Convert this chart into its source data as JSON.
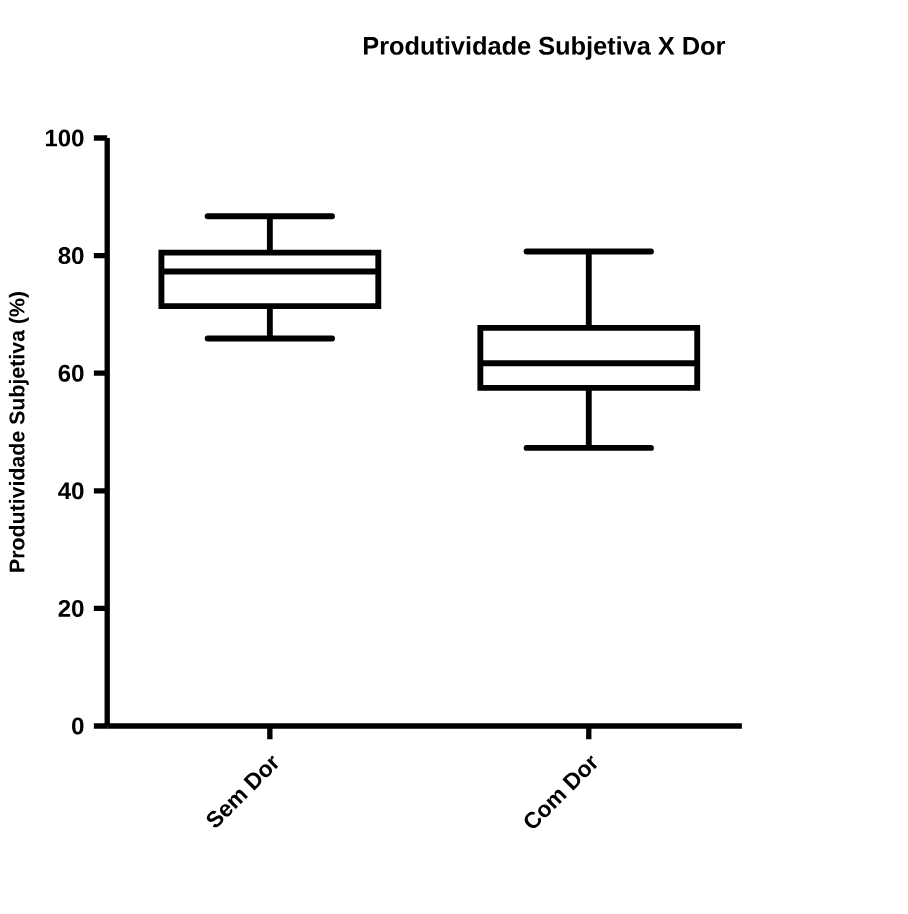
{
  "chart_data": {
    "type": "box",
    "title": "Produtividade Subjetiva  X  Dor",
    "ylabel": "Produtividade Subjetiva (%)",
    "categories": [
      "Sem Dor",
      "Com Dor"
    ],
    "boxes": [
      {
        "low": 65.9,
        "q1": 71.4,
        "median": 77.3,
        "q3": 80.5,
        "high": 86.7
      },
      {
        "low": 47.3,
        "q1": 57.5,
        "median": 61.7,
        "q3": 67.7,
        "high": 80.7
      }
    ],
    "color": "#000000",
    "ylim": [
      0,
      100
    ],
    "yticks": [
      0,
      20,
      40,
      60,
      80,
      100
    ],
    "grid": false
  }
}
